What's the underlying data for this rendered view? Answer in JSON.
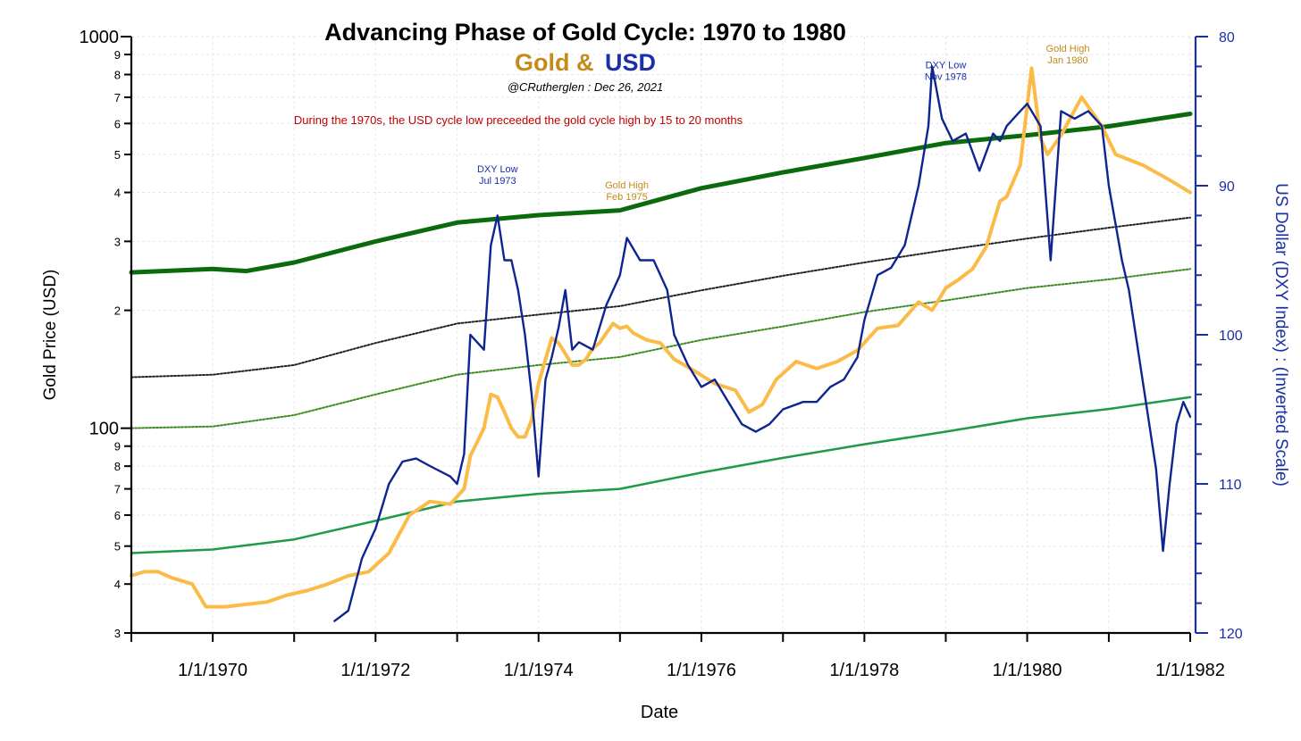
{
  "chart_data": {
    "type": "line",
    "title": "Advancing Phase of Gold Cycle: 1970 to 1980",
    "subtitle_gold": "Gold &",
    "subtitle_usd": "USD",
    "credit": "@CRutherglen : Dec 26, 2021",
    "note": "During the 1970s, the USD cycle low preceeded the gold cycle high by 15 to 20 months",
    "xlabel": "Date",
    "ylabel_left": "Gold Price (USD)",
    "ylabel_right": "US Dollar (DXY Index) : (Inverted Scale)",
    "x_range": [
      "1969-01-01",
      "1982-01-01"
    ],
    "x_ticks": [
      "1/1/1970",
      "1/1/1972",
      "1/1/1974",
      "1/1/1976",
      "1/1/1978",
      "1/1/1980",
      "1/1/1982"
    ],
    "y_left": {
      "scale": "log",
      "range": [
        30,
        1000
      ],
      "tick_labels": [
        {
          "v": 1000,
          "t": "1000"
        },
        {
          "v": 900,
          "t": "9"
        },
        {
          "v": 800,
          "t": "8"
        },
        {
          "v": 700,
          "t": "7"
        },
        {
          "v": 600,
          "t": "6"
        },
        {
          "v": 500,
          "t": "5"
        },
        {
          "v": 400,
          "t": "4"
        },
        {
          "v": 300,
          "t": "3"
        },
        {
          "v": 200,
          "t": "2"
        },
        {
          "v": 100,
          "t": "100"
        },
        {
          "v": 90,
          "t": "9"
        },
        {
          "v": 80,
          "t": "8"
        },
        {
          "v": 70,
          "t": "7"
        },
        {
          "v": 60,
          "t": "6"
        },
        {
          "v": 50,
          "t": "5"
        },
        {
          "v": 40,
          "t": "4"
        },
        {
          "v": 30,
          "t": "3"
        }
      ]
    },
    "y_right": {
      "scale": "linear",
      "inverted": true,
      "range": [
        80,
        120
      ],
      "tick_labels": [
        {
          "v": 80,
          "t": "80"
        },
        {
          "v": 90,
          "t": "90"
        },
        {
          "v": 100,
          "t": "100"
        },
        {
          "v": 110,
          "t": "110"
        },
        {
          "v": 120,
          "t": "120"
        }
      ]
    },
    "grid": true,
    "annotations": [
      {
        "lines": [
          "DXY Low",
          "Jul 1973"
        ],
        "x": "1973-07-01",
        "y_gold": 450,
        "color": "#1a2fa8"
      },
      {
        "lines": [
          "Gold High",
          "Feb 1975"
        ],
        "x": "1975-02-01",
        "y_gold": 410,
        "color": "#c58a1a"
      },
      {
        "lines": [
          "DXY Low",
          "Nov 1978"
        ],
        "x": "1979-01-01",
        "y_gold": 830,
        "color": "#1a2fa8"
      },
      {
        "lines": [
          "Gold High",
          "Jan 1980"
        ],
        "x": "1980-07-01",
        "y_gold": 915,
        "color": "#c58a1a"
      }
    ],
    "colors": {
      "gold": "#fbbb48",
      "usd": "#0e2591",
      "trend_top": "#0b6a0b",
      "trend_black": "#222222",
      "trend_green_dot": "#3a8c1e",
      "trend_green": "#1f9a4a",
      "subtitle_gold": "#c58a1a",
      "subtitle_usd": "#1a2fa8"
    },
    "series": [
      {
        "name": "Gold",
        "axis": "left",
        "points": [
          [
            "1969-01-01",
            42
          ],
          [
            "1969-03-01",
            43
          ],
          [
            "1969-05-01",
            43
          ],
          [
            "1969-07-01",
            41.5
          ],
          [
            "1969-09-01",
            40.5
          ],
          [
            "1969-10-01",
            40
          ],
          [
            "1969-12-01",
            35
          ],
          [
            "1970-03-01",
            35
          ],
          [
            "1970-06-01",
            35.5
          ],
          [
            "1970-09-01",
            36
          ],
          [
            "1970-12-01",
            37.5
          ],
          [
            "1971-03-01",
            38.5
          ],
          [
            "1971-06-01",
            40
          ],
          [
            "1971-09-01",
            42
          ],
          [
            "1971-12-01",
            43
          ],
          [
            "1972-03-01",
            48
          ],
          [
            "1972-06-01",
            60
          ],
          [
            "1972-09-01",
            65
          ],
          [
            "1972-12-01",
            64
          ],
          [
            "1973-02-01",
            70
          ],
          [
            "1973-03-01",
            85
          ],
          [
            "1973-05-01",
            100
          ],
          [
            "1973-06-01",
            122
          ],
          [
            "1973-07-01",
            120
          ],
          [
            "1973-08-01",
            110
          ],
          [
            "1973-09-01",
            100
          ],
          [
            "1973-10-01",
            95
          ],
          [
            "1973-11-01",
            95
          ],
          [
            "1973-12-01",
            105
          ],
          [
            "1974-01-01",
            130
          ],
          [
            "1974-02-01",
            150
          ],
          [
            "1974-03-01",
            170
          ],
          [
            "1974-04-01",
            165
          ],
          [
            "1974-05-01",
            155
          ],
          [
            "1974-06-01",
            145
          ],
          [
            "1974-07-01",
            145
          ],
          [
            "1974-08-01",
            150
          ],
          [
            "1974-09-01",
            160
          ],
          [
            "1974-10-01",
            165
          ],
          [
            "1974-11-01",
            175
          ],
          [
            "1974-12-01",
            185
          ],
          [
            "1975-01-01",
            180
          ],
          [
            "1975-02-01",
            182
          ],
          [
            "1975-03-01",
            175
          ],
          [
            "1975-05-01",
            168
          ],
          [
            "1975-07-01",
            165
          ],
          [
            "1975-09-01",
            150
          ],
          [
            "1975-12-01",
            140
          ],
          [
            "1976-03-01",
            130
          ],
          [
            "1976-06-01",
            125
          ],
          [
            "1976-08-01",
            110
          ],
          [
            "1976-10-01",
            115
          ],
          [
            "1976-12-01",
            133
          ],
          [
            "1977-03-01",
            148
          ],
          [
            "1977-06-01",
            142
          ],
          [
            "1977-09-01",
            148
          ],
          [
            "1977-12-01",
            158
          ],
          [
            "1978-03-01",
            180
          ],
          [
            "1978-06-01",
            183
          ],
          [
            "1978-09-01",
            210
          ],
          [
            "1978-11-01",
            200
          ],
          [
            "1979-01-01",
            228
          ],
          [
            "1979-03-01",
            240
          ],
          [
            "1979-05-01",
            255
          ],
          [
            "1979-07-01",
            290
          ],
          [
            "1979-09-01",
            380
          ],
          [
            "1979-10-01",
            390
          ],
          [
            "1979-12-01",
            470
          ],
          [
            "1980-01-21",
            830
          ],
          [
            "1980-03-01",
            550
          ],
          [
            "1980-04-01",
            500
          ],
          [
            "1980-06-01",
            560
          ],
          [
            "1980-09-01",
            700
          ],
          [
            "1980-12-01",
            590
          ],
          [
            "1981-02-01",
            500
          ],
          [
            "1981-06-01",
            470
          ],
          [
            "1981-09-01",
            440
          ],
          [
            "1981-11-01",
            420
          ],
          [
            "1982-01-01",
            400
          ]
        ]
      },
      {
        "name": "USD",
        "axis": "right",
        "points": [
          [
            "1971-07-01",
            119.2
          ],
          [
            "1971-09-01",
            118.5
          ],
          [
            "1971-11-01",
            115
          ],
          [
            "1972-01-01",
            113
          ],
          [
            "1972-03-01",
            110
          ],
          [
            "1972-05-01",
            108.5
          ],
          [
            "1972-07-01",
            108.3
          ],
          [
            "1972-09-01",
            108.8
          ],
          [
            "1972-12-01",
            109.5
          ],
          [
            "1973-01-01",
            110
          ],
          [
            "1973-02-01",
            108
          ],
          [
            "1973-03-01",
            100
          ],
          [
            "1973-05-01",
            101
          ],
          [
            "1973-06-01",
            94
          ],
          [
            "1973-07-01",
            92
          ],
          [
            "1973-08-01",
            95
          ],
          [
            "1973-09-01",
            95
          ],
          [
            "1973-10-01",
            97
          ],
          [
            "1973-11-01",
            100
          ],
          [
            "1973-12-01",
            104
          ],
          [
            "1974-01-01",
            109.5
          ],
          [
            "1974-02-01",
            103
          ],
          [
            "1974-03-01",
            101.5
          ],
          [
            "1974-04-01",
            99.5
          ],
          [
            "1974-05-01",
            97
          ],
          [
            "1974-06-01",
            101
          ],
          [
            "1974-07-01",
            100.5
          ],
          [
            "1974-09-01",
            101
          ],
          [
            "1974-11-01",
            98
          ],
          [
            "1975-01-01",
            96
          ],
          [
            "1975-02-01",
            93.5
          ],
          [
            "1975-04-01",
            95
          ],
          [
            "1975-06-01",
            95
          ],
          [
            "1975-08-01",
            97
          ],
          [
            "1975-09-01",
            100
          ],
          [
            "1975-11-01",
            102
          ],
          [
            "1976-01-01",
            103.5
          ],
          [
            "1976-03-01",
            103
          ],
          [
            "1976-05-01",
            104.5
          ],
          [
            "1976-07-01",
            106
          ],
          [
            "1976-09-01",
            106.5
          ],
          [
            "1976-11-01",
            106
          ],
          [
            "1977-01-01",
            105
          ],
          [
            "1977-04-01",
            104.5
          ],
          [
            "1977-06-01",
            104.5
          ],
          [
            "1977-08-01",
            103.5
          ],
          [
            "1977-10-01",
            103
          ],
          [
            "1977-12-01",
            101.5
          ],
          [
            "1978-01-01",
            99
          ],
          [
            "1978-03-01",
            96
          ],
          [
            "1978-05-01",
            95.5
          ],
          [
            "1978-07-01",
            94
          ],
          [
            "1978-09-01",
            90
          ],
          [
            "1978-10-15",
            86
          ],
          [
            "1978-11-01",
            82
          ],
          [
            "1978-12-15",
            85.5
          ],
          [
            "1979-02-01",
            87
          ],
          [
            "1979-04-01",
            86.5
          ],
          [
            "1979-06-01",
            89
          ],
          [
            "1979-08-01",
            86.5
          ],
          [
            "1979-09-01",
            87
          ],
          [
            "1979-10-01",
            86
          ],
          [
            "1979-12-01",
            85
          ],
          [
            "1980-01-01",
            84.5
          ],
          [
            "1980-03-01",
            86
          ],
          [
            "1980-04-15",
            95
          ],
          [
            "1980-06-01",
            85
          ],
          [
            "1980-08-01",
            85.5
          ],
          [
            "1980-10-01",
            85
          ],
          [
            "1980-12-01",
            86
          ],
          [
            "1981-01-01",
            90
          ],
          [
            "1981-03-01",
            95
          ],
          [
            "1981-04-01",
            97
          ],
          [
            "1981-06-01",
            103
          ],
          [
            "1981-08-01",
            109
          ],
          [
            "1981-09-01",
            114.5
          ],
          [
            "1981-10-01",
            110
          ],
          [
            "1981-11-01",
            106
          ],
          [
            "1981-12-01",
            104.5
          ],
          [
            "1982-01-01",
            105.5
          ]
        ]
      },
      {
        "axis": "left",
        "points": [
          [
            "1969-01-01",
            250
          ],
          [
            "1970-01-01",
            255
          ],
          [
            "1970-06-01",
            252
          ],
          [
            "1971-01-01",
            265
          ],
          [
            "1972-01-01",
            300
          ],
          [
            "1973-01-01",
            335
          ],
          [
            "1974-01-01",
            350
          ],
          [
            "1975-01-01",
            360
          ],
          [
            "1975-06-01",
            380
          ],
          [
            "1976-01-01",
            410
          ],
          [
            "1977-01-01",
            450
          ],
          [
            "1978-01-01",
            490
          ],
          [
            "1979-01-01",
            535
          ],
          [
            "1980-01-01",
            560
          ],
          [
            "1981-01-01",
            590
          ],
          [
            "1982-01-01",
            635
          ]
        ]
      },
      {
        "axis": "left",
        "points": [
          [
            "1969-01-01",
            135
          ],
          [
            "1970-01-01",
            137
          ],
          [
            "1971-01-01",
            145
          ],
          [
            "1972-01-01",
            165
          ],
          [
            "1973-01-01",
            185
          ],
          [
            "1974-01-01",
            195
          ],
          [
            "1975-01-01",
            205
          ],
          [
            "1976-01-01",
            225
          ],
          [
            "1977-01-01",
            245
          ],
          [
            "1978-01-01",
            265
          ],
          [
            "1979-01-01",
            285
          ],
          [
            "1980-01-01",
            305
          ],
          [
            "1981-01-01",
            325
          ],
          [
            "1982-01-01",
            345
          ]
        ]
      },
      {
        "axis": "left",
        "points": [
          [
            "1969-01-01",
            100
          ],
          [
            "1970-01-01",
            101
          ],
          [
            "1971-01-01",
            108
          ],
          [
            "1972-01-01",
            122
          ],
          [
            "1973-01-01",
            137
          ],
          [
            "1974-01-01",
            145
          ],
          [
            "1975-01-01",
            152
          ],
          [
            "1976-01-01",
            168
          ],
          [
            "1977-01-01",
            182
          ],
          [
            "1978-01-01",
            198
          ],
          [
            "1979-01-01",
            212
          ],
          [
            "1980-01-01",
            228
          ],
          [
            "1981-01-01",
            240
          ],
          [
            "1982-01-01",
            255
          ]
        ]
      },
      {
        "axis": "left",
        "points": [
          [
            "1969-01-01",
            48
          ],
          [
            "1970-01-01",
            49
          ],
          [
            "1971-01-01",
            52
          ],
          [
            "1972-01-01",
            58
          ],
          [
            "1973-01-01",
            65
          ],
          [
            "1974-01-01",
            68
          ],
          [
            "1975-01-01",
            70
          ],
          [
            "1976-01-01",
            77
          ],
          [
            "1977-01-01",
            84
          ],
          [
            "1978-01-01",
            91
          ],
          [
            "1979-01-01",
            98
          ],
          [
            "1980-01-01",
            106
          ],
          [
            "1981-01-01",
            112
          ],
          [
            "1982-01-01",
            120
          ]
        ]
      }
    ]
  }
}
